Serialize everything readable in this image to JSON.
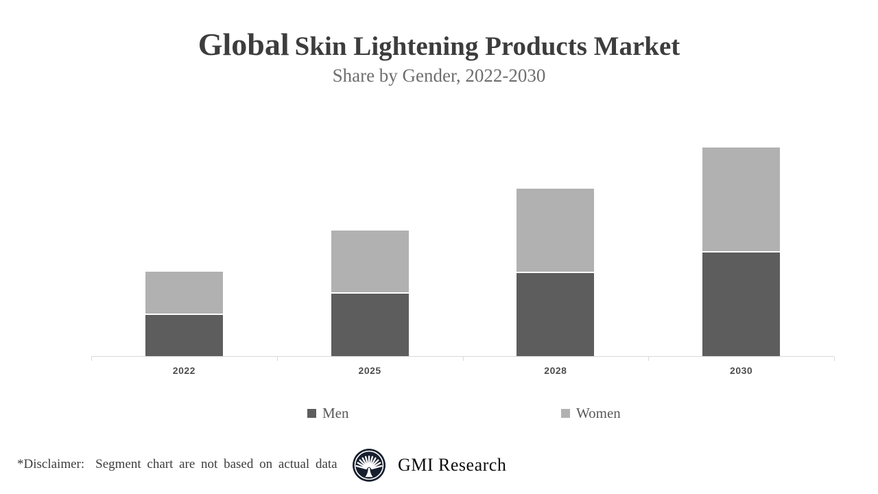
{
  "header": {
    "title_emphasis": "Global",
    "title_rest": "Skin Lightening Products Market",
    "subtitle": "Share by Gender, 2022-2030"
  },
  "chart_data": {
    "type": "bar",
    "stacked": true,
    "title": "Global Skin Lightening Products Market",
    "subtitle": "Share by Gender, 2022-2030",
    "categories": [
      "2022",
      "2025",
      "2028",
      "2030"
    ],
    "series": [
      {
        "name": "Men",
        "color": "#5d5d5d",
        "values": [
          20,
          30,
          40,
          50
        ]
      },
      {
        "name": "Women",
        "color": "#b1b1b1",
        "values": [
          20,
          30,
          40,
          50
        ]
      }
    ],
    "xlabel": "",
    "ylabel": "",
    "ylim": [
      0,
      100
    ],
    "y_axis_visible": false,
    "grid": false,
    "legend_position": "bottom",
    "axis_line_color": "#d9d9d9",
    "tick_label_color": "#4d4d4d",
    "segment_gap_color": "#ffffff"
  },
  "footer": {
    "disclaimer_label": "*Disclaimer:",
    "disclaimer_text": "Segment chart are not based on actual data",
    "brand": "GMI Research"
  },
  "icons": {
    "logo": "gmi-fan-tree-logo",
    "legend_marker": "filled-square"
  }
}
